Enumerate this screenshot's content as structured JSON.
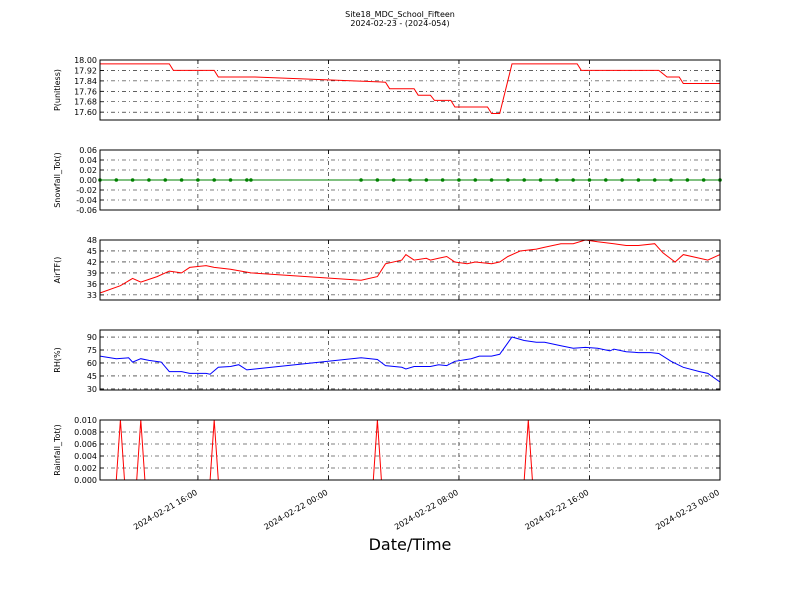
{
  "figure": {
    "title": "Site18_MDC_School_Fifteen",
    "subtitle": "2024-02-23 - (2024-054)",
    "xlabel": "Date/Time",
    "xlim": [
      "2024-02-21 10:00",
      "2024-02-23 00:00"
    ],
    "xticks": [
      {
        "value": "2024-02-21 16:00",
        "label": "2024-02-21 16:00"
      },
      {
        "value": "2024-02-22 00:00",
        "label": "2024-02-22 00:00"
      },
      {
        "value": "2024-02-22 08:00",
        "label": "2024-02-22 08:00"
      },
      {
        "value": "2024-02-22 16:00",
        "label": "2024-02-22 16:00"
      },
      {
        "value": "2024-02-23 00:00",
        "label": "2024-02-23 00:00"
      }
    ],
    "grid": true
  },
  "chart_data": [
    {
      "type": "line",
      "ylabel": "P(unitless)",
      "color": "#ff0000",
      "ylim": [
        17.54,
        18.0
      ],
      "yticks": [
        {
          "value": 17.6,
          "label": "17.60"
        },
        17.68,
        17.76,
        17.84,
        17.92,
        {
          "value": 18.0,
          "label": "18.00"
        }
      ],
      "x": [
        "2024-02-21 10:00",
        "2024-02-21 14:15",
        "2024-02-21 14:30",
        "2024-02-21 17:00",
        "2024-02-21 17:15",
        "2024-02-21 19:30",
        "2024-02-22 03:30",
        "2024-02-22 03:45",
        "2024-02-22 05:15",
        "2024-02-22 05:30",
        "2024-02-22 06:15",
        "2024-02-22 06:30",
        "2024-02-22 07:30",
        "2024-02-22 07:45",
        "2024-02-22 09:45",
        "2024-02-22 10:00",
        "2024-02-22 10:30",
        "2024-02-22 11:15",
        "2024-02-22 15:15",
        "2024-02-22 15:30",
        "2024-02-22 20:15",
        "2024-02-22 20:45",
        "2024-02-22 21:30",
        "2024-02-22 21:45",
        "2024-02-23 00:00"
      ],
      "values": [
        17.97,
        17.97,
        17.92,
        17.92,
        17.87,
        17.87,
        17.83,
        17.78,
        17.78,
        17.73,
        17.73,
        17.69,
        17.69,
        17.64,
        17.64,
        17.59,
        17.59,
        17.97,
        17.97,
        17.92,
        17.92,
        17.87,
        17.87,
        17.82,
        17.82
      ]
    },
    {
      "type": "line",
      "ylabel": "Snowfall_Tot()",
      "color": "#008000",
      "marker": "o",
      "ylim": [
        -0.06,
        0.06
      ],
      "yticks": [
        -0.06,
        -0.04,
        -0.02,
        {
          "value": 0,
          "label": "0.00"
        },
        0.02,
        0.04,
        0.06
      ],
      "x": [
        "2024-02-21 10:00",
        "2024-02-21 11:00",
        "2024-02-21 12:00",
        "2024-02-21 13:00",
        "2024-02-21 14:00",
        "2024-02-21 15:00",
        "2024-02-21 16:00",
        "2024-02-21 17:00",
        "2024-02-21 18:00",
        "2024-02-21 19:00",
        "2024-02-21 19:15",
        "2024-02-22 02:00",
        "2024-02-22 03:00",
        "2024-02-22 04:00",
        "2024-02-22 05:00",
        "2024-02-22 06:00",
        "2024-02-22 07:00",
        "2024-02-22 08:00",
        "2024-02-22 09:00",
        "2024-02-22 10:00",
        "2024-02-22 11:00",
        "2024-02-22 12:00",
        "2024-02-22 13:00",
        "2024-02-22 14:00",
        "2024-02-22 15:00",
        "2024-02-22 16:00",
        "2024-02-22 17:00",
        "2024-02-22 18:00",
        "2024-02-22 19:00",
        "2024-02-22 20:00",
        "2024-02-22 21:00",
        "2024-02-22 22:00",
        "2024-02-22 23:00",
        "2024-02-23 00:00"
      ],
      "values": [
        0,
        0,
        0,
        0,
        0,
        0,
        0,
        0,
        0,
        0,
        0,
        0,
        0,
        0,
        0,
        0,
        0,
        0,
        0,
        0,
        0,
        0,
        0,
        0,
        0,
        0,
        0,
        0,
        0,
        0,
        0,
        0,
        0,
        0
      ]
    },
    {
      "type": "line",
      "ylabel": "AirTF()",
      "color": "#ff0000",
      "ylim": [
        31.6,
        48
      ],
      "yticks": [
        33,
        36,
        39,
        42,
        45,
        48
      ],
      "x": [
        "2024-02-21 10:00",
        "2024-02-21 11:15",
        "2024-02-21 12:00",
        "2024-02-21 12:30",
        "2024-02-21 13:30",
        "2024-02-21 14:15",
        "2024-02-21 15:00",
        "2024-02-21 15:30",
        "2024-02-21 16:30",
        "2024-02-21 17:00",
        "2024-02-21 18:00",
        "2024-02-21 19:15",
        "2024-02-22 02:00",
        "2024-02-22 03:00",
        "2024-02-22 03:30",
        "2024-02-22 04:30",
        "2024-02-22 04:45",
        "2024-02-22 05:15",
        "2024-02-22 06:00",
        "2024-02-22 06:15",
        "2024-02-22 06:45",
        "2024-02-22 07:15",
        "2024-02-22 07:45",
        "2024-02-22 08:30",
        "2024-02-22 09:00",
        "2024-02-22 10:00",
        "2024-02-22 10:30",
        "2024-02-22 11:00",
        "2024-02-22 11:45",
        "2024-02-22 12:45",
        "2024-02-22 13:15",
        "2024-02-22 14:15",
        "2024-02-22 15:00",
        "2024-02-22 15:45",
        "2024-02-22 16:30",
        "2024-02-22 17:30",
        "2024-02-22 18:15",
        "2024-02-22 19:00",
        "2024-02-22 20:00",
        "2024-02-22 20:30",
        "2024-02-22 21:15",
        "2024-02-22 21:45",
        "2024-02-22 22:45",
        "2024-02-22 23:15",
        "2024-02-23 00:00"
      ],
      "values": [
        33.5,
        35.5,
        37.5,
        36.5,
        38,
        39.5,
        39,
        40.5,
        41,
        40.5,
        40,
        39,
        37,
        38,
        41.5,
        42.5,
        44,
        42.5,
        43,
        42.5,
        43,
        43.5,
        42,
        41.5,
        42,
        41.5,
        42,
        43.5,
        45,
        45.5,
        46,
        47,
        47,
        48,
        47.5,
        47,
        46.5,
        46.5,
        47,
        44.5,
        42,
        44,
        43,
        42.5,
        44
      ]
    },
    {
      "type": "line",
      "ylabel": "RH(%)",
      "color": "#0000ff",
      "ylim": [
        28.8,
        98.1
      ],
      "yticks": [
        30,
        45,
        60,
        75,
        90
      ],
      "x": [
        "2024-02-21 10:00",
        "2024-02-21 11:00",
        "2024-02-21 11:45",
        "2024-02-21 12:00",
        "2024-02-21 12:30",
        "2024-02-21 13:00",
        "2024-02-21 13:45",
        "2024-02-21 14:15",
        "2024-02-21 15:00",
        "2024-02-21 15:30",
        "2024-02-21 16:30",
        "2024-02-21 16:45",
        "2024-02-21 17:15",
        "2024-02-21 18:00",
        "2024-02-21 18:30",
        "2024-02-21 19:00",
        "2024-02-21 19:30",
        "2024-02-22 02:00",
        "2024-02-22 03:00",
        "2024-02-22 03:30",
        "2024-02-22 04:30",
        "2024-02-22 04:45",
        "2024-02-22 05:15",
        "2024-02-22 06:15",
        "2024-02-22 06:45",
        "2024-02-22 07:15",
        "2024-02-22 07:45",
        "2024-02-22 08:45",
        "2024-02-22 09:15",
        "2024-02-22 10:00",
        "2024-02-22 10:30",
        "2024-02-22 11:15",
        "2024-02-22 12:00",
        "2024-02-22 12:45",
        "2024-02-22 13:15",
        "2024-02-22 14:15",
        "2024-02-22 15:00",
        "2024-02-22 15:45",
        "2024-02-22 16:30",
        "2024-02-22 17:15",
        "2024-02-22 17:30",
        "2024-02-22 18:15",
        "2024-02-22 19:00",
        "2024-02-22 19:45",
        "2024-02-22 20:15",
        "2024-02-22 21:00",
        "2024-02-22 21:45",
        "2024-02-22 22:45",
        "2024-02-22 23:15",
        "2024-02-23 00:00"
      ],
      "values": [
        68,
        65,
        66,
        61,
        65,
        63,
        61,
        50,
        50,
        48,
        48,
        47,
        55,
        56,
        58,
        52,
        53,
        66,
        64,
        57,
        55,
        53,
        56,
        56,
        58,
        57,
        62,
        65,
        68,
        68,
        70,
        90,
        86,
        84,
        84,
        80,
        77,
        78,
        77,
        74,
        76,
        73,
        72,
        72,
        71,
        62,
        55,
        50,
        48,
        38
      ]
    },
    {
      "type": "line",
      "ylabel": "Rainfall_Tot()",
      "color": "#ff0000",
      "ylim": [
        0,
        0.01
      ],
      "yticks": [
        {
          "value": 0,
          "label": "0.000"
        },
        {
          "value": 0.002,
          "label": "0.002"
        },
        {
          "value": 0.004,
          "label": "0.004"
        },
        {
          "value": 0.006,
          "label": "0.006"
        },
        {
          "value": 0.008,
          "label": "0.008"
        },
        {
          "value": 0.01,
          "label": "0.010"
        }
      ],
      "x": [
        "2024-02-21 10:00",
        "2024-02-21 11:00",
        "2024-02-21 11:15",
        "2024-02-21 11:30",
        "2024-02-21 12:15",
        "2024-02-21 12:30",
        "2024-02-21 12:45",
        "2024-02-21 16:45",
        "2024-02-21 17:00",
        "2024-02-21 17:15",
        "2024-02-22 02:45",
        "2024-02-22 03:00",
        "2024-02-22 03:15",
        "2024-02-22 12:00",
        "2024-02-22 12:15",
        "2024-02-22 12:30",
        "2024-02-23 00:00"
      ],
      "values": [
        0,
        0,
        0.01,
        0,
        0,
        0.01,
        0,
        0,
        0.01,
        0,
        0,
        0.01,
        0,
        0,
        0.01,
        0,
        0
      ]
    }
  ]
}
